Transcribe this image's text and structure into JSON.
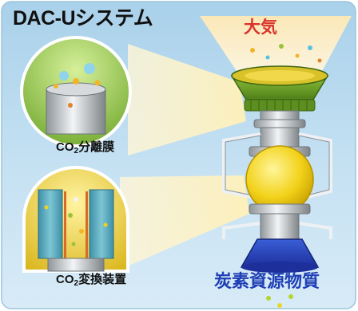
{
  "diagram": {
    "title": "DAC-Uシステム",
    "atmosphere_label": "大気",
    "membrane_label": {
      "main": "CO",
      "sub": "2",
      "rest": "分離膜"
    },
    "converter_label": {
      "main": "CO",
      "sub": "2",
      "rest": "変換装置"
    },
    "carbon_resource_label": "炭素資源物質"
  }
}
